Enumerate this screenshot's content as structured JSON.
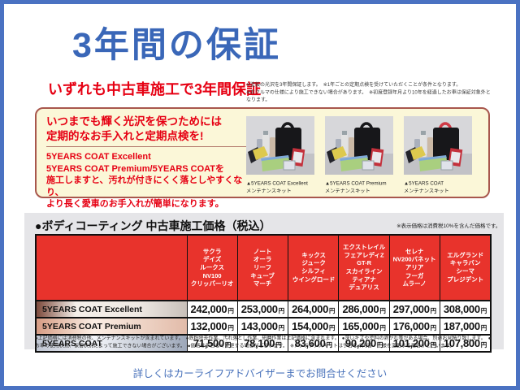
{
  "page": {
    "title": "3年間の保証",
    "subtitle": "いずれも中古車施工で3年間保証",
    "subtitle_note_line1": "※塗装の光沢を3年間保証します。　※1年ごとの定期点検を受けていただくことが条件となります。",
    "subtitle_note_line2": "※おクルマの仕様により施工できない場合があります。　※初度登録年月より10年を経過したお車は保証対象外となります。",
    "footer": "詳しくはカーライフアドバイザーまでお問合せください"
  },
  "promo_box": {
    "headline_line1": "いつまでも輝く光沢を保つためには",
    "headline_line2": "定期的なお手入れと定期点検を!",
    "body_line1": "5YEARS COAT Excellent",
    "body_line2": "5YEARS COAT Premium/5YEARS COATを",
    "body_line3": "施工しますと、汚れが付きにくく落としやすくなり、",
    "body_line4": "より長く愛車のお手入れが簡単になります。",
    "note": "※メンテナンスキットは予告なく内容・仕様を変更する場合がございます。",
    "products": [
      {
        "caption_line1": "▲5YEARS COAT Excellent",
        "caption_line2": "メンテナンスキット",
        "bag_handle_color": "#17171a"
      },
      {
        "caption_line1": "▲5YEARS COAT Premium",
        "caption_line2": "メンテナンスキット",
        "bag_handle_color": "#17171a"
      },
      {
        "caption_line1": "▲5YEARS COAT",
        "caption_line2": "メンテナンスキット",
        "bag_handle_color": "#d03a46"
      }
    ]
  },
  "price_table": {
    "title": "●ボディコーティング 中古車施工価格（税込）",
    "tax_note": "※表示価格は消費税10%を含んだ価格です。",
    "columns": [
      [
        "サクラ",
        "デイズ",
        "ルークス",
        "NV100",
        "クリッパーリオ"
      ],
      [
        "ノート",
        "オーラ",
        "リーフ",
        "キューブ",
        "マーチ"
      ],
      [
        "キックス",
        "ジューク",
        "シルフィ",
        "ウイングロード"
      ],
      [
        "エクストレイル",
        "フェアレディZ",
        "GT-R",
        "スカイライン",
        "ティアナ",
        "デュアリス"
      ],
      [
        "セレナ",
        "NV200バネット",
        "アリア",
        "フーガ",
        "ムラーノ"
      ],
      [
        "エルグランド",
        "キャラバン",
        "シーマ",
        "プレジデント"
      ]
    ],
    "rows": [
      {
        "label": "5YEARS COAT Excellent",
        "prices": [
          "242,000",
          "253,000",
          "264,000",
          "286,000",
          "297,000",
          "308,000"
        ]
      },
      {
        "label": "5YEARS COAT Premium",
        "prices": [
          "132,000",
          "143,000",
          "154,000",
          "165,000",
          "176,000",
          "187,000"
        ]
      },
      {
        "label": "5YEARS COAT",
        "prices": [
          "71,500",
          "78,100",
          "83,600",
          "90,200",
          "101,200",
          "107,800"
        ]
      }
    ],
    "price_unit": "円",
    "footnote": "●上記価格には消費税の他、メンテナンスキットが含まれています。　●鉄粉除去作業、汚れ落とし作業、研磨作業は上記価格に含まれます。　●深いキズや塗料の剥がれ等がある場合、別途お見積り致します。　●お車の使用状況、保管状況によって施工できない場合がございます。　●価格は予告なく変更する場合がございます。　※メンテナンスキットは予告なく内容・仕様を変更する場合がございます。"
  },
  "colors": {
    "frame_blue": "#4a72c2",
    "title_blue": "#3a67b8",
    "accent_red": "#e60013",
    "table_header_red": "#e8332c",
    "cream_bg": "#fbf7d8",
    "gray_bg": "#e5e5e8",
    "footer_blue": "#4a73bb"
  }
}
